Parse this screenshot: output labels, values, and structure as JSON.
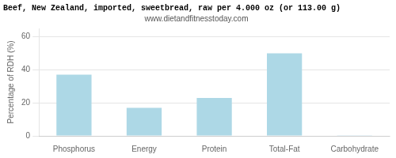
{
  "chart_data": {
    "type": "bar",
    "title": "Beef, New Zealand, imported, sweetbread, raw per 4.000 oz (or 113.00 g)",
    "subtitle": "www.dietandfitnesstoday.com",
    "ylabel": "Percentage of RDH (%)",
    "categories": [
      "Phosphorus",
      "Energy",
      "Protein",
      "Total-Fat",
      "Carbohydrate"
    ],
    "values": [
      37,
      17,
      23,
      50,
      0.3
    ],
    "color": "#add8e6",
    "ylim": [
      0,
      65
    ],
    "yticks": [
      0,
      20,
      40,
      60
    ],
    "grid": true
  }
}
